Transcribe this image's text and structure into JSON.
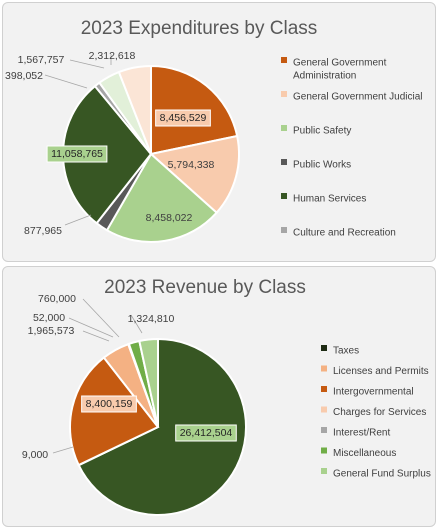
{
  "chart_data": [
    {
      "type": "pie",
      "title": "2023 Expenditures by Class",
      "legend_position": "right",
      "legend": [
        [
          "General Government",
          "Administration"
        ],
        [
          "General Government Judicial"
        ],
        [
          "Public Safety"
        ],
        [
          "Public Works"
        ],
        [
          "Human Services"
        ],
        [
          "Culture and Recreation"
        ]
      ],
      "slices": [
        {
          "category": "General Government Administration",
          "value": 8456529,
          "label": "8,456,529",
          "color": "#c55a11"
        },
        {
          "category": "General Government Judicial",
          "value": 5794338,
          "label": "5,794,338",
          "color": "#f8cbad"
        },
        {
          "category": "Public Safety",
          "value": 8458022,
          "label": "8,458,022",
          "color": "#a9d18e"
        },
        {
          "category": "Public Works",
          "value": 877965,
          "label": "877,965",
          "color": "#595959"
        },
        {
          "category": "Human Services",
          "value": 11058765,
          "label": "11,058,765",
          "color": "#375623"
        },
        {
          "category": "Culture and Recreation",
          "value": 398052,
          "label": "398,052",
          "color": "#a6a6a6"
        },
        {
          "category": "",
          "value": 1567757,
          "label": "1,567,757",
          "color": "#e2f0d9"
        },
        {
          "category": "",
          "value": 2312618,
          "label": "2,312,618",
          "color": "#fbe5d6"
        }
      ]
    },
    {
      "type": "pie",
      "title": "2023 Revenue by Class",
      "legend_position": "right",
      "legend": [
        [
          "Taxes"
        ],
        [
          "Licenses and Permits"
        ],
        [
          "Intergovernmental"
        ],
        [
          "Charges for Services"
        ],
        [
          "Interest/Rent"
        ],
        [
          "Miscellaneous"
        ],
        [
          "General Fund Surplus"
        ]
      ],
      "slices": [
        {
          "category": "Taxes",
          "value": 26412504,
          "label": "26,412,504",
          "color": "#375623"
        },
        {
          "category": "Licenses and Permits",
          "value": 9000,
          "label": "9,000",
          "color": "#f4b183"
        },
        {
          "category": "Intergovernmental",
          "value": 8400159,
          "label": "8,400,159",
          "color": "#c55a11"
        },
        {
          "category": "Charges for Services",
          "value": 1965573,
          "label": "1,965,573",
          "color": "#f4b183"
        },
        {
          "category": "Interest/Rent",
          "value": 52000,
          "label": "52,000",
          "color": "#8497b0"
        },
        {
          "category": "Miscellaneous",
          "value": 760000,
          "label": "760,000",
          "color": "#70ad47"
        },
        {
          "category": "General Fund Surplus",
          "value": 1324810,
          "label": "1,324,810",
          "color": "#a9d18e"
        }
      ]
    }
  ],
  "legend_colors": [
    [
      "#c55a11",
      "#f8cbad",
      "#a9d18e",
      "#595959",
      "#375623",
      "#a6a6a6"
    ],
    [
      "#1e2b14",
      "#f4b183",
      "#c55a11",
      "#f8cbad",
      "#a6a6a6",
      "#70ad47",
      "#a9d18e"
    ]
  ]
}
